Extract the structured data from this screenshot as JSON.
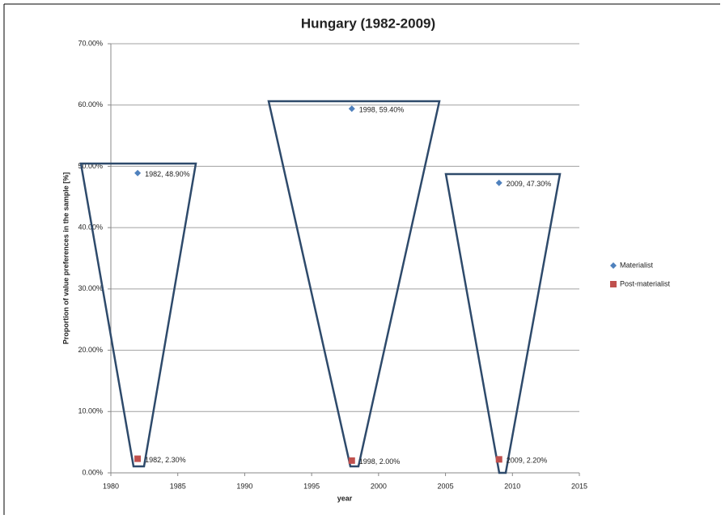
{
  "chart_data": {
    "type": "scatter",
    "title": "Hungary (1982-2009)",
    "xlabel": "year",
    "ylabel": "Proportion of value preferences in the sample [%]",
    "xlim": [
      1980,
      2015
    ],
    "xticks": [
      1980,
      1985,
      1990,
      1995,
      2000,
      2005,
      2010,
      2015
    ],
    "ylim": [
      0,
      70
    ],
    "yticks": [
      {
        "value": 0,
        "label": "0.00%"
      },
      {
        "value": 10,
        "label": "10.00%"
      },
      {
        "value": 20,
        "label": "20.00%"
      },
      {
        "value": 30,
        "label": "30.00%"
      },
      {
        "value": 40,
        "label": "40.00%"
      },
      {
        "value": 50,
        "label": "50.00%"
      },
      {
        "value": 60,
        "label": "60.00%"
      },
      {
        "value": 70,
        "label": "70.00%"
      }
    ],
    "grid": true,
    "legend": "right",
    "series": [
      {
        "name": "Materialist",
        "color": "#4f81bd",
        "marker": "diamond",
        "x": [
          1982,
          1998,
          2009
        ],
        "values": [
          48.9,
          59.4,
          47.3
        ],
        "value_labels": [
          "1982, 48.90%",
          "1998, 59.40%",
          "2009, 47.30%"
        ]
      },
      {
        "name": "Post-materialist",
        "color": "#c0504d",
        "marker": "square",
        "x": [
          1982,
          1998,
          2009
        ],
        "values": [
          2.3,
          2.0,
          2.2
        ],
        "value_labels": [
          "1982, 2.30%",
          "1998, 2.00%",
          "2009, 2.20%"
        ]
      }
    ]
  }
}
